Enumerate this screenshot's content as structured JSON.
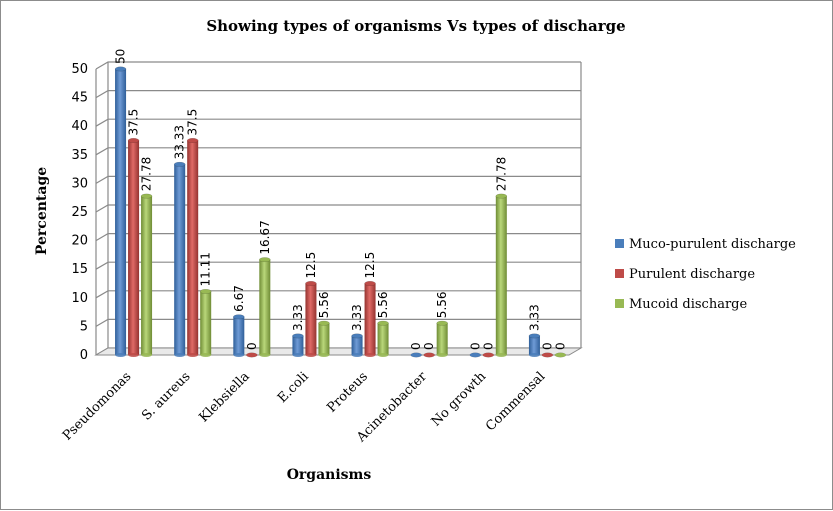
{
  "chart_data": {
    "type": "bar",
    "title": "Showing types of organisms Vs types of discharge",
    "xlabel": "Organisms",
    "ylabel": "Percentage",
    "ylim": [
      0,
      50
    ],
    "yticks": [
      "0",
      "5",
      "10",
      "15",
      "20",
      "25",
      "30",
      "35",
      "40",
      "45",
      "50"
    ],
    "grid": true,
    "legend_position": "right",
    "categories": [
      "Pseudomonas",
      "S. aureus",
      "Klebsiella",
      "E.coli",
      "Proteus",
      "Acinetobacter",
      "No growth",
      "Commensal"
    ],
    "series": [
      {
        "name": "Muco-purulent discharge",
        "color": "#4a7ebb",
        "values": [
          50,
          33.33,
          6.67,
          3.33,
          3.33,
          0,
          0,
          3.33
        ],
        "labels": [
          "50",
          "33.33",
          "6.67",
          "3.33",
          "3.33",
          "0",
          "0",
          "3.33"
        ]
      },
      {
        "name": "Purulent discharge",
        "color": "#be4b48",
        "values": [
          37.5,
          37.5,
          0,
          12.5,
          12.5,
          0,
          0,
          0
        ],
        "labels": [
          "37.5",
          "37.5",
          "0",
          "12.5",
          "12.5",
          "0",
          "0",
          "0"
        ]
      },
      {
        "name": "Mucoid discharge",
        "color": "#98b954",
        "values": [
          27.78,
          11.11,
          16.67,
          5.56,
          5.56,
          5.56,
          27.78,
          0
        ],
        "labels": [
          "27.78",
          "11.11",
          "16.67",
          "5.56",
          "5.56",
          "5.56",
          "27.78",
          "0"
        ]
      }
    ]
  }
}
